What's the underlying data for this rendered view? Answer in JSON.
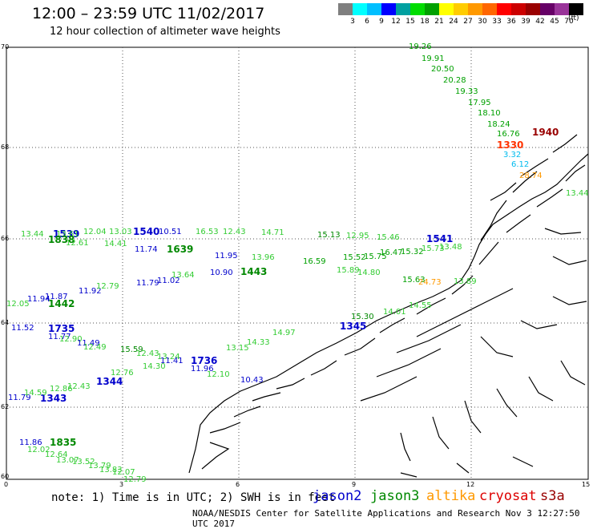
{
  "header": {
    "title": "12:00 – 23:59 UTC 11/02/2017",
    "subtitle": "12 hour collection of altimeter wave heights"
  },
  "legend": {
    "colors": [
      "#7f7f7f",
      "#00ffff",
      "#00bfff",
      "#0000ff",
      "#00a0a0",
      "#00dd00",
      "#00a000",
      "#ffff00",
      "#ffcc00",
      "#ff9900",
      "#ff6600",
      "#ff0000",
      "#cc0000",
      "#990000",
      "#660066",
      "#993399",
      "#000000"
    ],
    "labels": [
      "3",
      "6",
      "9",
      "12",
      "15",
      "18",
      "21",
      "24",
      "27",
      "30",
      "33",
      "36",
      "39",
      "42",
      "45",
      "70"
    ],
    "unit": "(ft)"
  },
  "axes": {
    "x_ticks": [
      "0",
      "3",
      "6",
      "9",
      "12",
      "15"
    ],
    "y_ticks": [
      "70",
      "68",
      "66",
      "64",
      "62",
      "60"
    ]
  },
  "footer": {
    "note": "note: 1) Time is in UTC; 2) SWH is in feet",
    "satellites": [
      {
        "name": "jason2",
        "color": "#0000cc"
      },
      {
        "name": "jason3",
        "color": "#008800"
      },
      {
        "name": "altika",
        "color": "#ff9900"
      },
      {
        "name": "cryosat",
        "color": "#dd0000"
      },
      {
        "name": "s3a",
        "color": "#990000"
      }
    ],
    "credit": "NOAA/NESDIS Center for Satellite Applications and Research   Nov  3 12:27:50 UTC 2017"
  },
  "colors": {
    "c12": "#0000cc",
    "c15": "#00a000",
    "c18": "#33cc33",
    "c21": "#008800",
    "c6": "#00bbee",
    "c27": "#ff9900",
    "c39": "#990000",
    "c33": "#ff3300"
  },
  "observations": [
    {
      "t": "19.26",
      "c": "c15"
    },
    {
      "t": "19.91",
      "c": "c15"
    },
    {
      "t": "20.50",
      "c": "c15"
    },
    {
      "t": "20.28",
      "c": "c15"
    },
    {
      "t": "19.33",
      "c": "c15"
    },
    {
      "t": "17.95",
      "c": "c15"
    },
    {
      "t": "18.10",
      "c": "c15"
    },
    {
      "t": "18.24",
      "c": "c15"
    },
    {
      "t": "16.76",
      "c": "c15"
    },
    {
      "t": "1940",
      "c": "c39"
    },
    {
      "t": "1330",
      "c": "c33"
    },
    {
      "t": "3.32",
      "c": "c6"
    },
    {
      "t": "6.12",
      "c": "c6"
    },
    {
      "t": "28.74",
      "c": "c27"
    },
    {
      "t": "13.44",
      "c": "c18"
    },
    {
      "t": "13.44",
      "c": "c18"
    },
    {
      "t": "1539",
      "c": "c12"
    },
    {
      "t": "13.61",
      "c": "c18"
    },
    {
      "t": "1838",
      "c": "c21"
    },
    {
      "t": "12.04",
      "c": "c18"
    },
    {
      "t": "13.03",
      "c": "c18"
    },
    {
      "t": "1540",
      "c": "c12"
    },
    {
      "t": "10.51",
      "c": "c12"
    },
    {
      "t": "16.53",
      "c": "c18"
    },
    {
      "t": "12.43",
      "c": "c18"
    },
    {
      "t": "14.71",
      "c": "c18"
    },
    {
      "t": "15.13",
      "c": "c21"
    },
    {
      "t": "12.95",
      "c": "c18"
    },
    {
      "t": "15.46",
      "c": "c18"
    },
    {
      "t": "1541",
      "c": "c12"
    },
    {
      "t": "12.61",
      "c": "c18"
    },
    {
      "t": "14.41",
      "c": "c18"
    },
    {
      "t": "11.74",
      "c": "c12"
    },
    {
      "t": "1639",
      "c": "c21"
    },
    {
      "t": "11.95",
      "c": "c12"
    },
    {
      "t": "13.96",
      "c": "c18"
    },
    {
      "t": "16.59",
      "c": "c15"
    },
    {
      "t": "15.52",
      "c": "c15"
    },
    {
      "t": "15.75",
      "c": "c15"
    },
    {
      "t": "16.47",
      "c": "c15"
    },
    {
      "t": "15.32",
      "c": "c15"
    },
    {
      "t": "15.73",
      "c": "c18"
    },
    {
      "t": "13.48",
      "c": "c18"
    },
    {
      "t": "10.90",
      "c": "c12"
    },
    {
      "t": "1443",
      "c": "c21"
    },
    {
      "t": "13.64",
      "c": "c18"
    },
    {
      "t": "15.89",
      "c": "c18"
    },
    {
      "t": "14.80",
      "c": "c18"
    },
    {
      "t": "15.63",
      "c": "c15"
    },
    {
      "t": "24.73",
      "c": "c27"
    },
    {
      "t": "13.89",
      "c": "c18"
    },
    {
      "t": "11.79",
      "c": "c12"
    },
    {
      "t": "11.02",
      "c": "c12"
    },
    {
      "t": "11.92",
      "c": "c12"
    },
    {
      "t": "12.79",
      "c": "c18"
    },
    {
      "t": "11.87",
      "c": "c12"
    },
    {
      "t": "11.94",
      "c": "c12"
    },
    {
      "t": "12.05",
      "c": "c18"
    },
    {
      "t": "1442",
      "c": "c21"
    },
    {
      "t": "11.52",
      "c": "c12"
    },
    {
      "t": "1735",
      "c": "c12"
    },
    {
      "t": "11.77",
      "c": "c12"
    },
    {
      "t": "12.90",
      "c": "c18"
    },
    {
      "t": "11.49",
      "c": "c12"
    },
    {
      "t": "12.49",
      "c": "c18"
    },
    {
      "t": "15.59",
      "c": "c21"
    },
    {
      "t": "12.43",
      "c": "c18"
    },
    {
      "t": "13.24",
      "c": "c18"
    },
    {
      "t": "11.41",
      "c": "c12"
    },
    {
      "t": "1736",
      "c": "c12"
    },
    {
      "t": "14.30",
      "c": "c18"
    },
    {
      "t": "12.76",
      "c": "c18"
    },
    {
      "t": "11.96",
      "c": "c12"
    },
    {
      "t": "12.10",
      "c": "c18"
    },
    {
      "t": "10.43",
      "c": "c12"
    },
    {
      "t": "14.97",
      "c": "c18"
    },
    {
      "t": "14.33",
      "c": "c18"
    },
    {
      "t": "13.15",
      "c": "c18"
    },
    {
      "t": "1345",
      "c": "c12"
    },
    {
      "t": "15.30",
      "c": "c21"
    },
    {
      "t": "14.01",
      "c": "c18"
    },
    {
      "t": "14.55",
      "c": "c18"
    },
    {
      "t": "1344",
      "c": "c12"
    },
    {
      "t": "12.43",
      "c": "c18"
    },
    {
      "t": "12.86",
      "c": "c18"
    },
    {
      "t": "11.79",
      "c": "c12"
    },
    {
      "t": "1343",
      "c": "c12"
    },
    {
      "t": "14.59",
      "c": "c18"
    },
    {
      "t": "11.86",
      "c": "c12"
    },
    {
      "t": "1835",
      "c": "c21"
    },
    {
      "t": "12.02",
      "c": "c18"
    },
    {
      "t": "12.64",
      "c": "c18"
    },
    {
      "t": "13.07",
      "c": "c18"
    },
    {
      "t": "13.52",
      "c": "c18"
    },
    {
      "t": "13.79",
      "c": "c18"
    },
    {
      "t": "13.83",
      "c": "c18"
    },
    {
      "t": "12.07",
      "c": "c18"
    },
    {
      "t": "12.79",
      "c": "c18"
    }
  ]
}
